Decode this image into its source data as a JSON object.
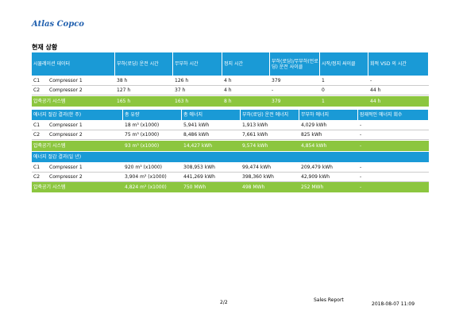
{
  "logo": "Atlas Copco",
  "section_title": "현재 상황",
  "table1": {
    "header": [
      "시뮬레이션 데이터",
      "부하(로딩) 운전 시간",
      "무부하 시간",
      "정지 시간",
      "부하(로딩)/무부하(언로딩) 운전 사이클",
      "시작/정지 싸이클",
      "회적 VSD 의 시간"
    ],
    "rows": [
      [
        "C1",
        "Compressor 1",
        "38 h",
        "126 h",
        "4 h",
        "379",
        "1",
        "-"
      ],
      [
        "C2",
        "Compressor 2",
        "127 h",
        "37 h",
        "4 h",
        "-",
        "0",
        "44 h"
      ]
    ],
    "total": [
      "압축공기 시스템",
      "165 h",
      "163 h",
      "8 h",
      "379",
      "1",
      "44 h"
    ]
  },
  "table2": {
    "header": [
      "에너지 절감 결과(한 주)",
      "총 유량",
      "총 에너지",
      "부하(로딩) 운전 에너지",
      "무부하 에너지",
      "잠재적인 에너지 회수"
    ],
    "rows": [
      [
        "C1",
        "Compressor 1",
        "18 m³ (x1000)",
        "5,941 kWh",
        "1,913 kWh",
        "4,029 kWh",
        "-"
      ],
      [
        "C2",
        "Compressor 2",
        "75 m³ (x1000)",
        "8,486 kWh",
        "7,661 kWh",
        "825 kWh",
        "-"
      ]
    ],
    "total": [
      "압축공기 시스템",
      "93 m³ (x1000)",
      "14,427 kWh",
      "9,574 kWh",
      "4,854 kWh",
      "-"
    ],
    "year_header": "에너지 절감 결과(일 년)",
    "year_rows": [
      [
        "C1",
        "Compressor 1",
        "920 m³ (x1000)",
        "308,953 kWh",
        "99,474 kWh",
        "209,479 kWh",
        "-"
      ],
      [
        "C2",
        "Compressor 2",
        "3,904 m³ (x1000)",
        "441,269 kWh",
        "398,360 kWh",
        "42,909 kWh",
        "-"
      ]
    ],
    "year_total": [
      "압축공기 시스템",
      "4,824 m³ (x1000)",
      "750 MWh",
      "498 MWh",
      "252 MWh",
      "-"
    ]
  },
  "footer": {
    "page": "2/2",
    "report": "Sales Report",
    "date": "2018-08-07 11:09"
  }
}
